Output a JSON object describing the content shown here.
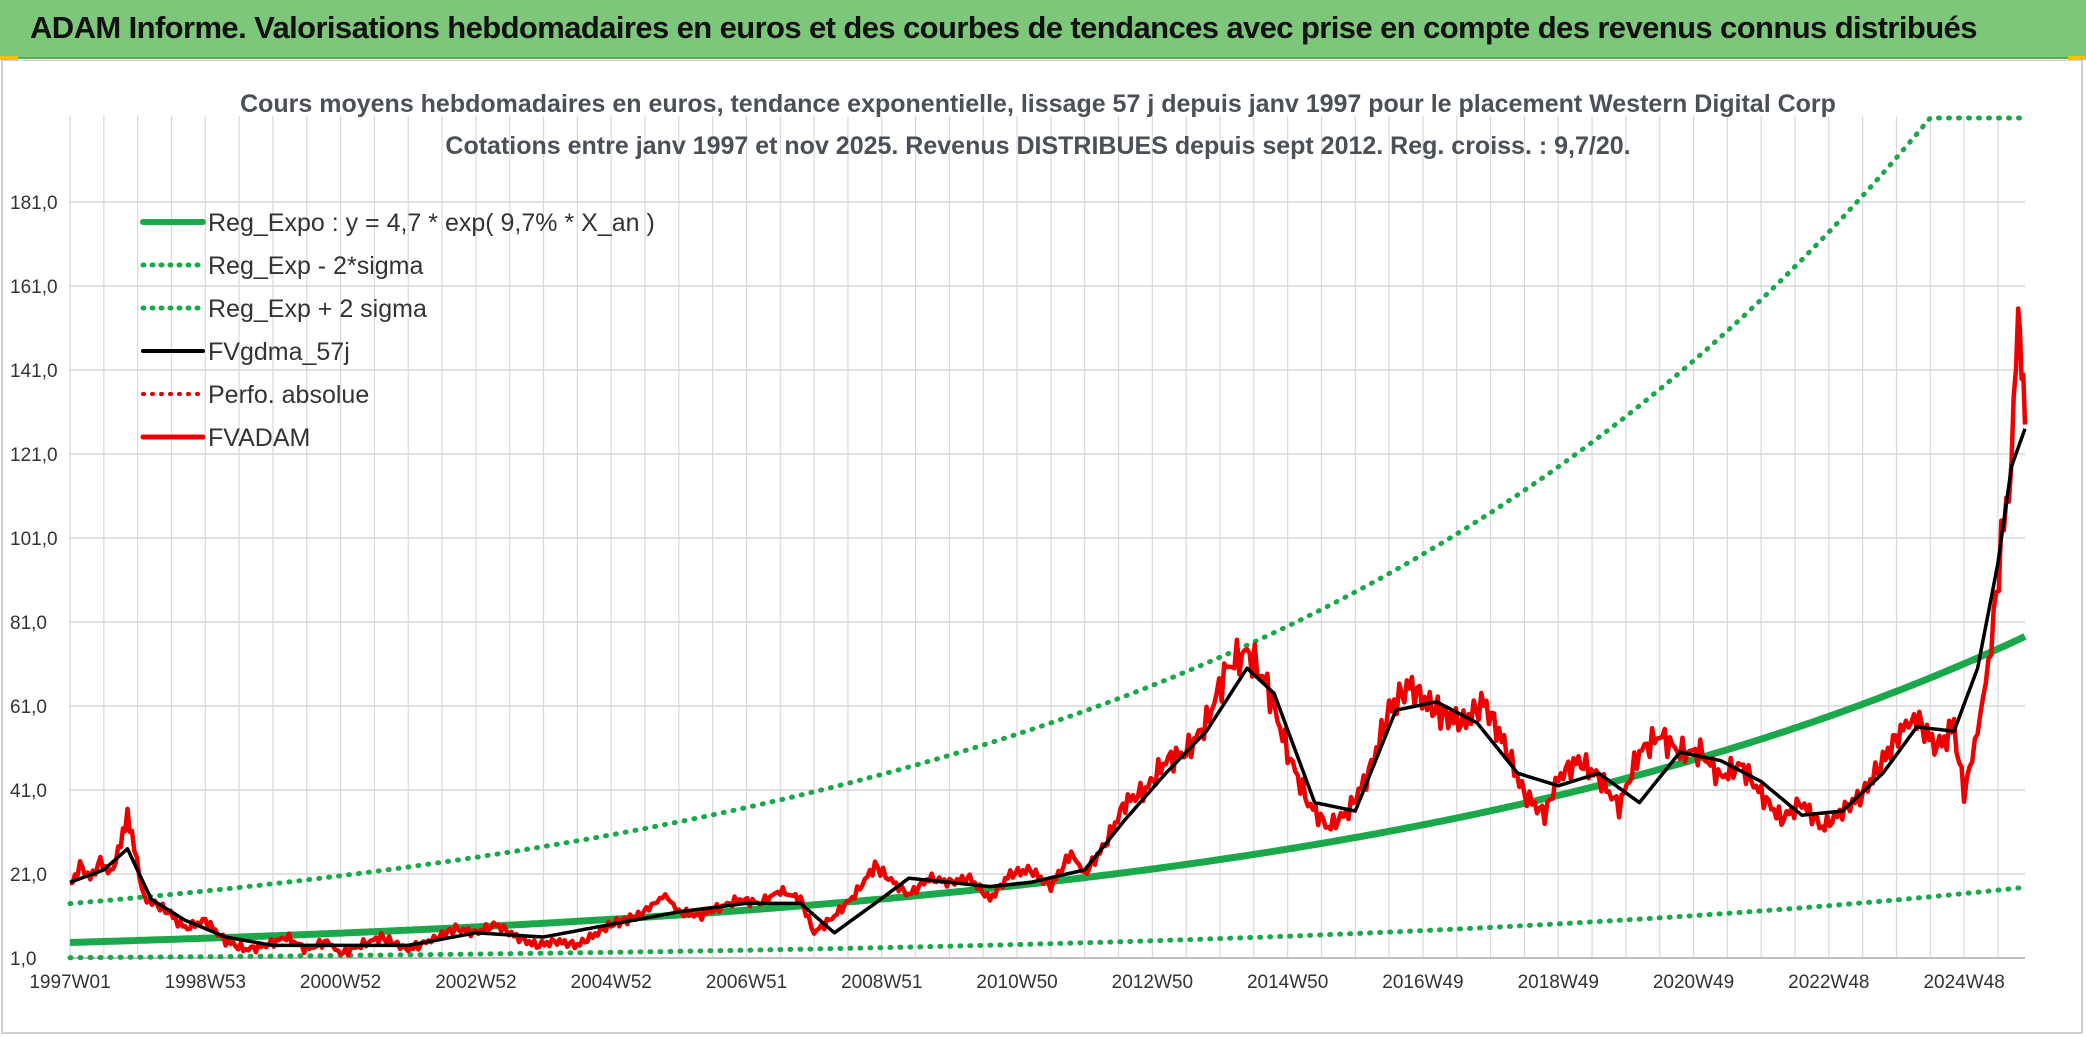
{
  "header": {
    "title": "ADAM Informe. Valorisations hebdomadaires en euros et des courbes de tendances avec prise en compte des revenus connus distribués"
  },
  "colors": {
    "banner": "#7dc77a",
    "trend": "#1aa84a",
    "band": "#1aa84a",
    "smooth": "#000000",
    "perfo": "#e00000",
    "fvadam": "#ee0000",
    "grid": "#d9d9d9"
  },
  "chart_data": {
    "type": "line",
    "title": "Cours moyens hebdomadaires en euros, tendance exponentielle, lissage 57 j depuis janv 1997 pour le placement Western Digital Corp",
    "subtitle": "Cotations entre janv 1997 et nov 2025. Revenus DISTRIBUES depuis sept 2012. Reg. croiss. : 9,7/20.",
    "xlabel": "",
    "ylabel": "",
    "ylim": [
      1,
      201
    ],
    "xlim": [
      1997.0,
      2025.9
    ],
    "x_ticks": [
      {
        "label": "1997W01",
        "year": 1997.0
      },
      {
        "label": "1998W53",
        "year": 1999.0
      },
      {
        "label": "2000W52",
        "year": 2001.0
      },
      {
        "label": "2002W52",
        "year": 2003.0
      },
      {
        "label": "2004W52",
        "year": 2005.0
      },
      {
        "label": "2006W51",
        "year": 2007.0
      },
      {
        "label": "2008W51",
        "year": 2009.0
      },
      {
        "label": "2010W50",
        "year": 2011.0
      },
      {
        "label": "2012W50",
        "year": 2013.0
      },
      {
        "label": "2014W50",
        "year": 2015.0
      },
      {
        "label": "2016W49",
        "year": 2017.0
      },
      {
        "label": "2018W49",
        "year": 2019.0
      },
      {
        "label": "2020W49",
        "year": 2021.0
      },
      {
        "label": "2022W48",
        "year": 2023.0
      },
      {
        "label": "2024W48",
        "year": 2025.0
      }
    ],
    "y_ticks": [
      "1,0",
      "21,0",
      "41,0",
      "61,0",
      "81,0",
      "101,0",
      "121,0",
      "141,0",
      "161,0",
      "181,0"
    ],
    "y_tick_values": [
      1,
      21,
      41,
      61,
      81,
      101,
      121,
      141,
      161,
      181
    ],
    "legend_position": "top-left",
    "legend": [
      {
        "label": "Reg_Expo : y = 4,7 * exp( 9,7% *  X_an )",
        "style": "solid",
        "color": "#1aa84a",
        "width": 6
      },
      {
        "label": "Reg_Exp - 2*sigma",
        "style": "dotted",
        "color": "#1aa84a",
        "width": 5
      },
      {
        "label": "Reg_Exp + 2 sigma",
        "style": "dotted",
        "color": "#1aa84a",
        "width": 5
      },
      {
        "label": "FVgdma_57j",
        "style": "solid",
        "color": "#000000",
        "width": 4
      },
      {
        "label": "Perfo. absolue",
        "style": "dotted",
        "color": "#e00000",
        "width": 4
      },
      {
        "label": "FVADAM",
        "style": "solid",
        "color": "#ee0000",
        "width": 5
      }
    ],
    "regression": {
      "a": 4.7,
      "rate": 0.097,
      "x0_year": 1997.0,
      "low_factor": 0.23,
      "high_factor": 2.97,
      "cap": 201
    },
    "series": [
      {
        "name": "FVADAM",
        "x": [
          1997.0,
          1997.15,
          1997.3,
          1997.45,
          1997.6,
          1997.75,
          1997.85,
          1997.95,
          1998.1,
          1998.25,
          1998.45,
          1998.7,
          1999.0,
          1999.3,
          1999.6,
          1999.9,
          2000.2,
          2000.5,
          2000.8,
          2001.0,
          2001.3,
          2001.6,
          2002.0,
          2002.3,
          2002.7,
          2003.0,
          2003.3,
          2003.6,
          2003.9,
          2004.2,
          2004.5,
          2004.8,
          2005.0,
          2005.4,
          2005.8,
          2006.0,
          2006.3,
          2006.6,
          2006.9,
          2007.2,
          2007.5,
          2007.8,
          2008.0,
          2008.3,
          2008.6,
          2008.9,
          2009.1,
          2009.4,
          2009.7,
          2010.0,
          2010.3,
          2010.6,
          2010.9,
          2011.2,
          2011.5,
          2011.8,
          2012.0,
          2012.3,
          2012.6,
          2012.9,
          2013.2,
          2013.5,
          2013.8,
          2014.1,
          2014.4,
          2014.7,
          2015.0,
          2015.3,
          2015.6,
          2015.9,
          2016.2,
          2016.5,
          2016.8,
          2017.1,
          2017.3,
          2017.6,
          2017.9,
          2018.2,
          2018.5,
          2018.8,
          2019.0,
          2019.3,
          2019.6,
          2019.9,
          2020.2,
          2020.5,
          2020.8,
          2021.1,
          2021.4,
          2021.7,
          2022.0,
          2022.3,
          2022.6,
          2022.9,
          2023.2,
          2023.5,
          2023.8,
          2024.1,
          2024.3,
          2024.6,
          2024.85,
          2025.0,
          2025.2,
          2025.4,
          2025.55,
          2025.7,
          2025.8,
          2025.85,
          2025.9
        ],
        "values": [
          18,
          23,
          20,
          24,
          21,
          28,
          36,
          27,
          15,
          14,
          12,
          8,
          10,
          5,
          3,
          4,
          6,
          3,
          5,
          2,
          4,
          6,
          3,
          5,
          8,
          7,
          9,
          6,
          4,
          5,
          4,
          7,
          9,
          11,
          16,
          12,
          11,
          13,
          15,
          14,
          17,
          15,
          7,
          11,
          16,
          23,
          20,
          16,
          20,
          19,
          20,
          15,
          21,
          22,
          18,
          26,
          21,
          28,
          38,
          41,
          48,
          50,
          57,
          70,
          74,
          66,
          50,
          38,
          32,
          36,
          45,
          60,
          66,
          61,
          59,
          57,
          62,
          52,
          40,
          35,
          44,
          48,
          44,
          37,
          50,
          54,
          50,
          50,
          44,
          47,
          40,
          34,
          38,
          32,
          36,
          40,
          48,
          56,
          58,
          51,
          56,
          40,
          55,
          75,
          100,
          118,
          152,
          140,
          128
        ]
      },
      {
        "name": "FVgdma_57j",
        "x": [
          1997.0,
          1997.5,
          1997.85,
          1998.2,
          1998.7,
          1999.3,
          2000.0,
          2001.0,
          2002.0,
          2003.0,
          2004.0,
          2005.0,
          2006.0,
          2007.0,
          2007.8,
          2008.3,
          2008.9,
          2009.4,
          2010.0,
          2010.6,
          2011.2,
          2012.0,
          2012.6,
          2013.2,
          2013.8,
          2014.4,
          2014.8,
          2015.4,
          2016.0,
          2016.6,
          2017.2,
          2017.8,
          2018.4,
          2019.0,
          2019.6,
          2020.2,
          2020.8,
          2021.4,
          2022.0,
          2022.6,
          2023.2,
          2023.8,
          2024.3,
          2024.85,
          2025.2,
          2025.5,
          2025.7,
          2025.9
        ],
        "values": [
          19,
          22,
          27,
          15,
          10,
          6,
          4,
          4,
          4,
          7,
          6,
          9,
          12,
          14,
          14,
          7,
          14,
          20,
          19,
          18,
          19,
          22,
          34,
          45,
          55,
          70,
          64,
          38,
          36,
          60,
          62,
          57,
          45,
          42,
          45,
          38,
          50,
          48,
          43,
          35,
          36,
          45,
          56,
          55,
          70,
          95,
          118,
          127
        ]
      }
    ]
  }
}
